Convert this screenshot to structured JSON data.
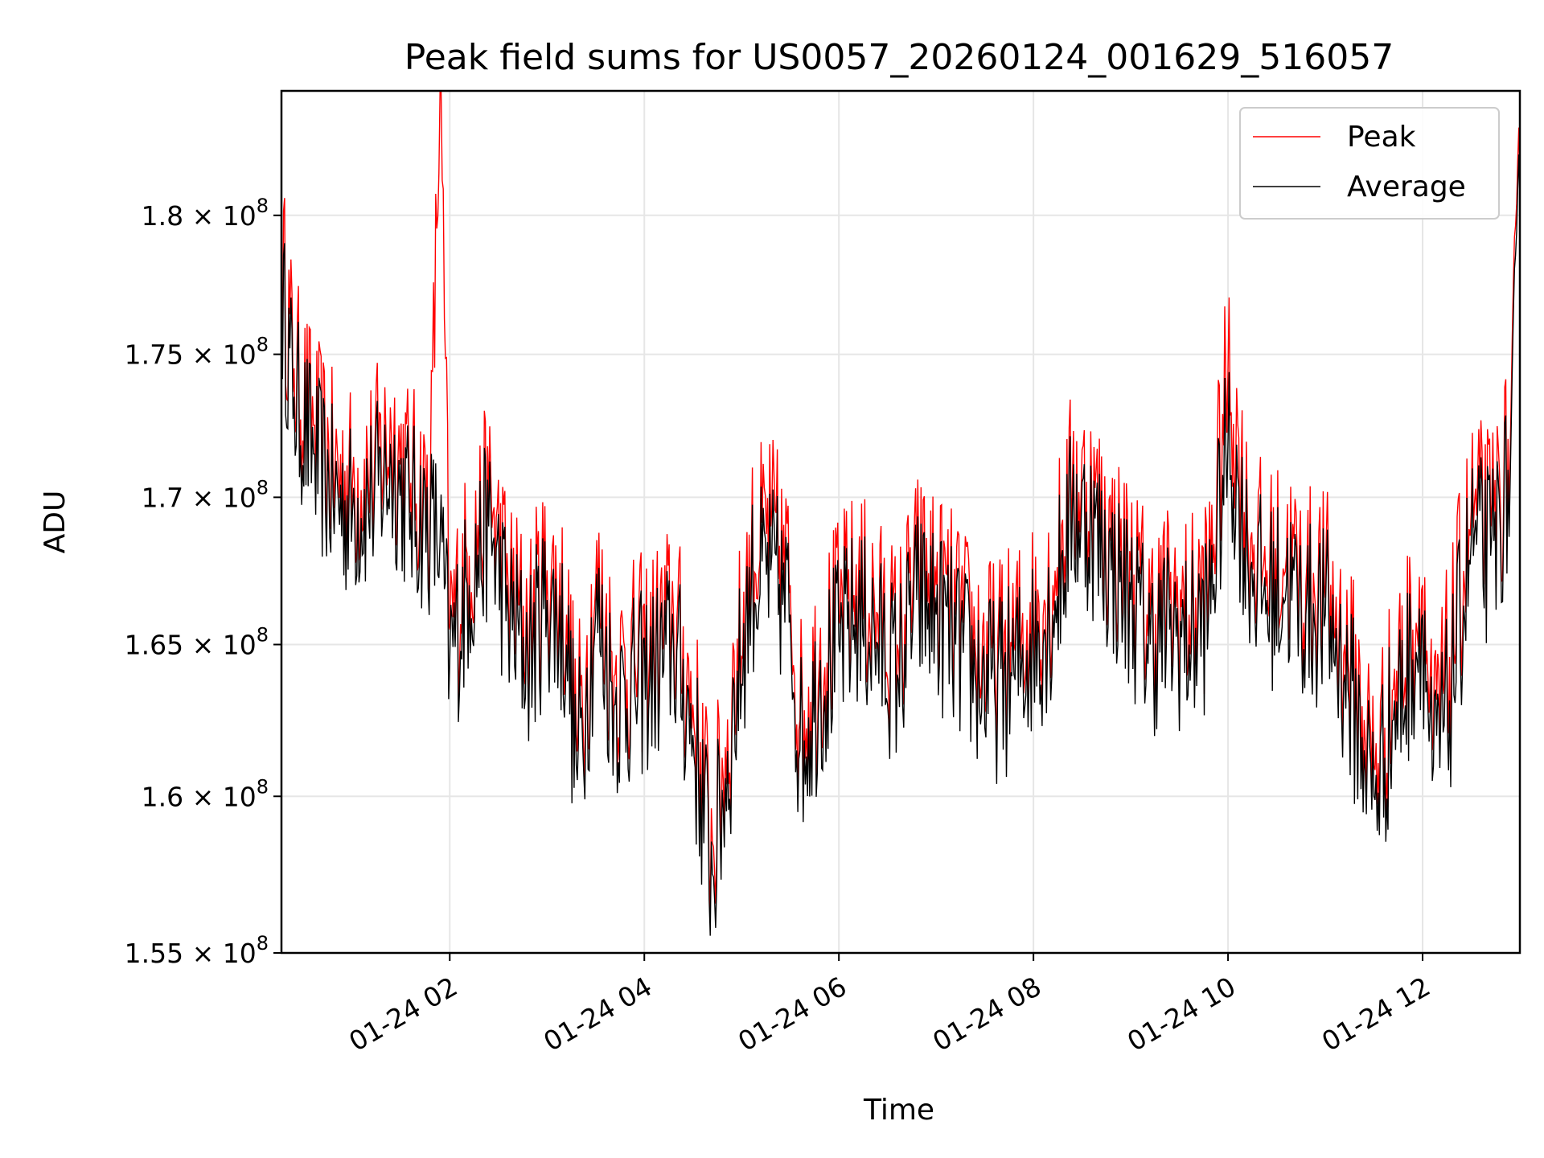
{
  "chart_data": {
    "type": "line",
    "title": "Peak field sums for US0057_20260124_001629_516057",
    "xlabel": "Time",
    "ylabel": "ADU",
    "xlim_hours": [
      0.27,
      13.0
    ],
    "ylim": [
      155000000.0,
      184600000.0
    ],
    "grid": true,
    "legend_position": "top-right",
    "x_ticks": [
      {
        "hour": 2,
        "label": "01-24 02"
      },
      {
        "hour": 4,
        "label": "01-24 04"
      },
      {
        "hour": 6,
        "label": "01-24 06"
      },
      {
        "hour": 8,
        "label": "01-24 08"
      },
      {
        "hour": 10,
        "label": "01-24 10"
      },
      {
        "hour": 12,
        "label": "01-24 12"
      }
    ],
    "y_ticks": [
      {
        "value": 155000000.0,
        "mantissa": "1.55",
        "exp": "8"
      },
      {
        "value": 160000000.0,
        "mantissa": "1.6",
        "exp": "8"
      },
      {
        "value": 165000000.0,
        "mantissa": "1.65",
        "exp": "8"
      },
      {
        "value": 170000000.0,
        "mantissa": "1.7",
        "exp": "8"
      },
      {
        "value": 175000000.0,
        "mantissa": "1.75",
        "exp": "8"
      },
      {
        "value": 180000000.0,
        "mantissa": "1.8",
        "exp": "8"
      }
    ],
    "series": [
      {
        "name": "Peak",
        "color": "#ff0000"
      },
      {
        "name": "Average",
        "color": "#000000"
      }
    ],
    "hours": [
      0.27,
      0.4,
      0.6,
      0.8,
      1.0,
      1.2,
      1.4,
      1.6,
      1.8,
      1.9,
      2.0,
      2.2,
      2.4,
      2.6,
      2.8,
      3.0,
      3.2,
      3.3,
      3.4,
      3.5,
      3.7,
      3.9,
      4.1,
      4.3,
      4.5,
      4.7,
      4.9,
      5.1,
      5.3,
      5.5,
      5.6,
      5.8,
      6.0,
      6.2,
      6.4,
      6.6,
      6.8,
      7.0,
      7.2,
      7.4,
      7.6,
      7.8,
      8.0,
      8.2,
      8.4,
      8.6,
      8.8,
      9.0,
      9.2,
      9.4,
      9.6,
      9.8,
      10.0,
      10.2,
      10.4,
      10.6,
      10.8,
      11.0,
      11.2,
      11.4,
      11.5,
      11.7,
      11.9,
      12.0,
      12.1,
      12.3,
      12.5,
      12.7,
      12.9,
      13.0
    ],
    "average_values": [
      177000000.0,
      173500000.0,
      171500000.0,
      170000000.0,
      169500000.0,
      170000000.0,
      171000000.0,
      169500000.0,
      169000000.0,
      168500000.0,
      164500000.0,
      167000000.0,
      169000000.0,
      166000000.0,
      164500000.0,
      166500000.0,
      165000000.0,
      161000000.0,
      163000000.0,
      166000000.0,
      163000000.0,
      163500000.0,
      164000000.0,
      165000000.0,
      162000000.0,
      157500000.0,
      162000000.0,
      167000000.0,
      167500000.0,
      166000000.0,
      161500000.0,
      163500000.0,
      165000000.0,
      166000000.0,
      165000000.0,
      164000000.0,
      166500000.0,
      166000000.0,
      165000000.0,
      164000000.0,
      163500000.0,
      164000000.0,
      165000000.0,
      166000000.0,
      169500000.0,
      169000000.0,
      167500000.0,
      166500000.0,
      165000000.0,
      165500000.0,
      165000000.0,
      166000000.0,
      172000000.0,
      168000000.0,
      166500000.0,
      167000000.0,
      166000000.0,
      166000000.0,
      164000000.0,
      161500000.0,
      160000000.0,
      162500000.0,
      164500000.0,
      166000000.0,
      160500000.0,
      163500000.0,
      168500000.0,
      168000000.0,
      170500000.0,
      180500000.0
    ],
    "peak_values": [
      178500000.0,
      174500000.0,
      172500000.0,
      171000000.0,
      170500000.0,
      171000000.0,
      172200000.0,
      170500000.0,
      170000000.0,
      184600000.0,
      165500000.0,
      168000000.0,
      170000000.0,
      167000000.0,
      165500000.0,
      167500000.0,
      166000000.0,
      162000000.0,
      164000000.0,
      167000000.0,
      164000000.0,
      164500000.0,
      165000000.0,
      166000000.0,
      163000000.0,
      158500000.0,
      163000000.0,
      168000000.0,
      169000000.0,
      167000000.0,
      162500000.0,
      164500000.0,
      166000000.0,
      167000000.0,
      166000000.0,
      165000000.0,
      167500000.0,
      167000000.0,
      166000000.0,
      165000000.0,
      164500000.0,
      165000000.0,
      166000000.0,
      167000000.0,
      170500000.0,
      170000000.0,
      168500000.0,
      167500000.0,
      166000000.0,
      166500000.0,
      166000000.0,
      167000000.0,
      174500000.0,
      169000000.0,
      167500000.0,
      168000000.0,
      167000000.0,
      167000000.0,
      165000000.0,
      162500000.0,
      161000000.0,
      163500000.0,
      165500000.0,
      167000000.0,
      161500000.0,
      165000000.0,
      169500000.0,
      169000000.0,
      171500000.0,
      181200000.0
    ]
  }
}
